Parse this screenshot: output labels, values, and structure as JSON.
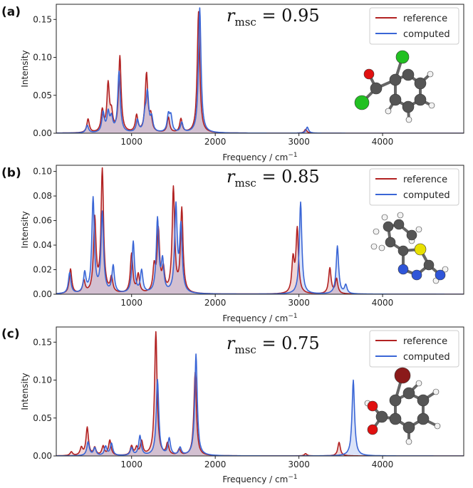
{
  "colors": {
    "reference": "#b22222",
    "computed": "#3a66d6"
  },
  "chart_data": [
    {
      "type": "line",
      "panel_label": "(a)",
      "annotation": {
        "symbol": "r",
        "subscript": "msc",
        "rest": " = 0.95"
      },
      "xlabel": "Frequency / cm",
      "xlabel_sup": "−1",
      "ylabel": "Intensity",
      "xlim": [
        100,
        4970
      ],
      "ylim": [
        0,
        0.17
      ],
      "xticks": [
        1000,
        2000,
        3000,
        4000
      ],
      "xtick_labels": [
        "1000",
        "2000",
        "3000",
        "4000"
      ],
      "yticks": [
        0.0,
        0.05,
        0.1,
        0.15
      ],
      "ytick_labels": [
        "0.00",
        "0.05",
        "0.10",
        "0.15"
      ],
      "legend": [
        "reference",
        "computed"
      ],
      "molecule": "molecule-a",
      "series": [
        {
          "name": "reference",
          "peaks": [
            [
              480,
              0.018
            ],
            [
              650,
              0.028
            ],
            [
              720,
              0.062
            ],
            [
              760,
              0.022
            ],
            [
              860,
              0.1
            ],
            [
              1060,
              0.022
            ],
            [
              1170,
              0.018
            ],
            [
              1180,
              0.063
            ],
            [
              1230,
              0.02
            ],
            [
              1440,
              0.02
            ],
            [
              1590,
              0.018
            ],
            [
              1800,
              0.16
            ],
            [
              3080,
              0.005
            ]
          ]
        },
        {
          "name": "computed",
          "peaks": [
            [
              470,
              0.01
            ],
            [
              660,
              0.026
            ],
            [
              720,
              0.025
            ],
            [
              760,
              0.018
            ],
            [
              850,
              0.08
            ],
            [
              1070,
              0.016
            ],
            [
              1160,
              0.02
            ],
            [
              1190,
              0.05
            ],
            [
              1240,
              0.018
            ],
            [
              1440,
              0.022
            ],
            [
              1470,
              0.02
            ],
            [
              1600,
              0.013
            ],
            [
              1815,
              0.165
            ],
            [
              3100,
              0.008
            ]
          ]
        }
      ]
    },
    {
      "type": "line",
      "panel_label": "(b)",
      "annotation": {
        "symbol": "r",
        "subscript": "msc",
        "rest": " = 0.85"
      },
      "xlabel": "Frequency / cm",
      "xlabel_sup": "−1",
      "ylabel": "Intensity",
      "xlim": [
        100,
        4970
      ],
      "ylim": [
        0,
        0.105
      ],
      "xticks": [
        1000,
        2000,
        3000,
        4000
      ],
      "xtick_labels": [
        "1000",
        "2000",
        "3000",
        "4000"
      ],
      "yticks": [
        0.0,
        0.02,
        0.04,
        0.06,
        0.08,
        0.1
      ],
      "ytick_labels": [
        "0.00",
        "0.02",
        "0.04",
        "0.06",
        "0.08",
        "0.10"
      ],
      "legend": [
        "reference",
        "computed"
      ],
      "molecule": "molecule-b",
      "series": [
        {
          "name": "reference",
          "peaks": [
            [
              270,
              0.02
            ],
            [
              430,
              0.01
            ],
            [
              560,
              0.06
            ],
            [
              650,
              0.1
            ],
            [
              760,
              0.012
            ],
            [
              1000,
              0.032
            ],
            [
              1080,
              0.015
            ],
            [
              1270,
              0.02
            ],
            [
              1320,
              0.05
            ],
            [
              1380,
              0.018
            ],
            [
              1500,
              0.085
            ],
            [
              1600,
              0.068
            ],
            [
              2930,
              0.027
            ],
            [
              2980,
              0.052
            ],
            [
              3370,
              0.021
            ],
            [
              3450,
              0.012
            ]
          ]
        },
        {
          "name": "computed",
          "peaks": [
            [
              260,
              0.017
            ],
            [
              440,
              0.016
            ],
            [
              540,
              0.077
            ],
            [
              650,
              0.065
            ],
            [
              780,
              0.022
            ],
            [
              1020,
              0.042
            ],
            [
              1120,
              0.018
            ],
            [
              1310,
              0.06
            ],
            [
              1370,
              0.025
            ],
            [
              1530,
              0.07
            ],
            [
              1590,
              0.053
            ],
            [
              3020,
              0.075
            ],
            [
              3460,
              0.039
            ],
            [
              3560,
              0.007
            ]
          ]
        }
      ]
    },
    {
      "type": "line",
      "panel_label": "(c)",
      "annotation": {
        "symbol": "r",
        "subscript": "msc",
        "rest": " = 0.75"
      },
      "xlabel": "Frequency / cm",
      "xlabel_sup": "−1",
      "ylabel": "Intensity",
      "xlim": [
        100,
        4970
      ],
      "ylim": [
        0,
        0.17
      ],
      "xticks": [
        1000,
        2000,
        3000,
        4000
      ],
      "xtick_labels": [
        "1000",
        "2000",
        "3000",
        "4000"
      ],
      "yticks": [
        0.0,
        0.05,
        0.1,
        0.15
      ],
      "ytick_labels": [
        "0.00",
        "0.05",
        "0.10",
        "0.15"
      ],
      "legend": [
        "reference",
        "computed"
      ],
      "molecule": "molecule-c",
      "series": [
        {
          "name": "reference",
          "peaks": [
            [
              280,
              0.005
            ],
            [
              400,
              0.01
            ],
            [
              470,
              0.037
            ],
            [
              560,
              0.01
            ],
            [
              660,
              0.012
            ],
            [
              740,
              0.02
            ],
            [
              1000,
              0.012
            ],
            [
              1060,
              0.01
            ],
            [
              1120,
              0.018
            ],
            [
              1290,
              0.163
            ],
            [
              1430,
              0.015
            ],
            [
              1570,
              0.008
            ],
            [
              1760,
              0.11
            ],
            [
              3080,
              0.003
            ],
            [
              3480,
              0.018
            ]
          ]
        },
        {
          "name": "computed",
          "peaks": [
            [
              480,
              0.018
            ],
            [
              560,
              0.01
            ],
            [
              690,
              0.012
            ],
            [
              760,
              0.016
            ],
            [
              1000,
              0.01
            ],
            [
              1100,
              0.026
            ],
            [
              1310,
              0.1
            ],
            [
              1450,
              0.022
            ],
            [
              1580,
              0.01
            ],
            [
              1770,
              0.134
            ],
            [
              3650,
              0.1
            ]
          ]
        }
      ]
    }
  ]
}
